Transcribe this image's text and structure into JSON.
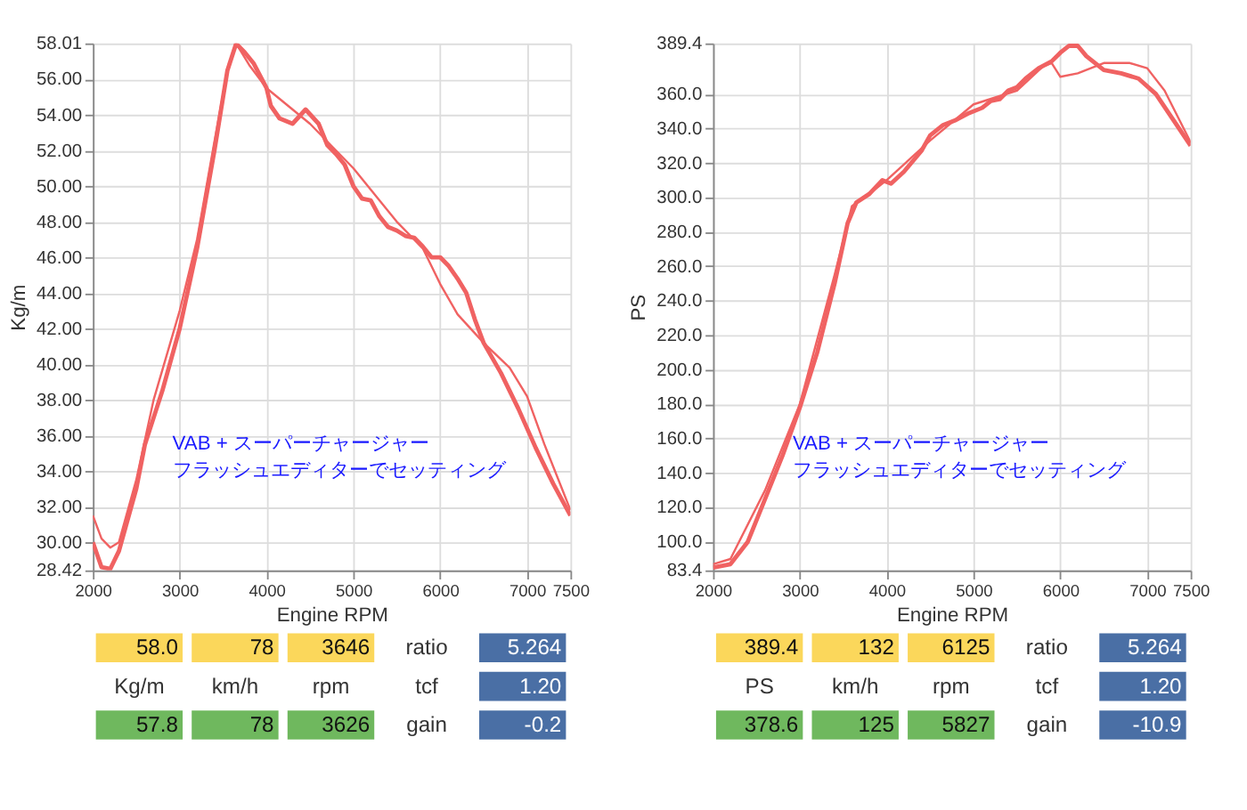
{
  "chart_data": [
    {
      "type": "line",
      "xlabel": "Engine RPM",
      "ylabel": "Kg/m",
      "grid": true,
      "xlim": [
        2000,
        7500
      ],
      "xticks": [
        2000,
        3000,
        4000,
        5000,
        6000,
        7000,
        7500
      ],
      "ylim": [
        28.42,
        58.01
      ],
      "yticks": [
        {
          "value": 28.42,
          "label": "28.42"
        },
        {
          "value": 30,
          "label": "30.00"
        },
        {
          "value": 32,
          "label": "32.00"
        },
        {
          "value": 34,
          "label": "34.00"
        },
        {
          "value": 36,
          "label": "36.00"
        },
        {
          "value": 38,
          "label": "38.00"
        },
        {
          "value": 40,
          "label": "40.00"
        },
        {
          "value": 42,
          "label": "42.00"
        },
        {
          "value": 44,
          "label": "44.00"
        },
        {
          "value": 46,
          "label": "46.00"
        },
        {
          "value": 48,
          "label": "48.00"
        },
        {
          "value": 50,
          "label": "50.00"
        },
        {
          "value": 52,
          "label": "52.00"
        },
        {
          "value": 54,
          "label": "54.00"
        },
        {
          "value": 56,
          "label": "56.00"
        },
        {
          "value": 58.01,
          "label": "58.01"
        }
      ],
      "series": [
        {
          "color": "#f06262",
          "x": [
            2000,
            2100,
            2200,
            2300,
            2500,
            2600,
            2700,
            2800,
            3000,
            3200,
            3400,
            3550,
            3650,
            3750,
            3850,
            4000,
            4050,
            4150,
            4300,
            4450,
            4600,
            4700,
            4800,
            4900,
            5000,
            5100,
            5200,
            5300,
            5400,
            5500,
            5600,
            5700,
            5800,
            5900,
            6000,
            6100,
            6200,
            6300,
            6400,
            6500,
            6700,
            6900,
            7100,
            7300,
            7500
          ],
          "values": [
            30.0,
            28.6,
            28.5,
            29.5,
            33.0,
            35.5,
            37.0,
            38.5,
            42.0,
            46.5,
            52.0,
            56.5,
            58.0,
            57.5,
            56.9,
            55.5,
            54.5,
            53.8,
            53.5,
            54.3,
            53.5,
            52.3,
            51.8,
            51.2,
            50.0,
            49.3,
            49.2,
            48.3,
            47.7,
            47.5,
            47.2,
            47.1,
            46.6,
            46.0,
            46.0,
            45.5,
            44.8,
            44.0,
            42.5,
            41.2,
            39.5,
            37.5,
            35.3,
            33.3,
            31.5
          ]
        },
        {
          "color": "#f06262",
          "x": [
            2000,
            2100,
            2200,
            2300,
            2500,
            2700,
            3000,
            3200,
            3400,
            3550,
            3650,
            3800,
            4000,
            4500,
            5000,
            5500,
            5800,
            6000,
            6200,
            6500,
            6800,
            7000,
            7200,
            7500
          ],
          "values": [
            31.5,
            30.2,
            29.7,
            30.0,
            33.5,
            38.0,
            43.0,
            47.0,
            52.5,
            56.5,
            58.0,
            56.8,
            55.5,
            53.5,
            51.0,
            48.0,
            46.5,
            44.5,
            42.8,
            41.2,
            39.8,
            38.2,
            35.5,
            31.8
          ]
        }
      ],
      "annotations": [
        "VAB + スーパーチャージャー",
        "フラッシュエディターでセッティング",
        "58.0",
        "78",
        "3646",
        "ratio",
        "5.264",
        "Kg/m",
        "km/h",
        "rpm",
        "tcf",
        "1.20",
        "57.8",
        "78",
        "3626",
        "gain",
        "-0.2"
      ]
    },
    {
      "type": "line",
      "xlabel": "Engine RPM",
      "ylabel": "PS",
      "grid": true,
      "xlim": [
        2000,
        7500
      ],
      "xticks": [
        2000,
        3000,
        4000,
        5000,
        6000,
        7000,
        7500
      ],
      "ylim": [
        83.4,
        389.4
      ],
      "yticks": [
        83.4,
        {
          "value": 100,
          "label": "100.0"
        },
        {
          "value": 120,
          "label": "120.0"
        },
        {
          "value": 140,
          "label": "140.0"
        },
        {
          "value": 160,
          "label": "160.0"
        },
        {
          "value": 180,
          "label": "180.0"
        },
        {
          "value": 200,
          "label": "200.0"
        },
        {
          "value": 220,
          "label": "220.0"
        },
        {
          "value": 240,
          "label": "240.0"
        },
        {
          "value": 260,
          "label": "260.0"
        },
        {
          "value": 280,
          "label": "280.0"
        },
        {
          "value": 300,
          "label": "300.0"
        },
        {
          "value": 320,
          "label": "320.0"
        },
        {
          "value": 340,
          "label": "340.0"
        },
        {
          "value": 360,
          "label": "360.0"
        },
        389.4
      ],
      "series": [
        {
          "color": "#f06262",
          "x": [
            2000,
            2200,
            2400,
            2600,
            2800,
            3000,
            3200,
            3400,
            3550,
            3650,
            3800,
            3950,
            4050,
            4200,
            4400,
            4500,
            4650,
            4800,
            4950,
            5100,
            5200,
            5300,
            5400,
            5500,
            5600,
            5750,
            5900,
            6000,
            6100,
            6200,
            6300,
            6500,
            6700,
            6900,
            7100,
            7300,
            7500
          ],
          "values": [
            85,
            87,
            100,
            125,
            150,
            178,
            210,
            250,
            285,
            297,
            302,
            310,
            308,
            315,
            327,
            336,
            342,
            345,
            349,
            352,
            356,
            357,
            362,
            364,
            369,
            375,
            379,
            384,
            388,
            388,
            382,
            374,
            372,
            369,
            360,
            345,
            330
          ]
        },
        {
          "color": "#f06262",
          "x": [
            2000,
            2200,
            2600,
            3000,
            3400,
            3600,
            3800,
            4000,
            4500,
            5000,
            5500,
            5800,
            5900,
            6000,
            6200,
            6500,
            6800,
            7000,
            7200,
            7500
          ],
          "values": [
            87,
            90,
            130,
            180,
            255,
            295,
            302,
            310,
            333,
            354,
            362,
            376,
            378,
            370,
            372,
            378,
            378,
            375,
            362,
            332
          ]
        }
      ],
      "annotations": [
        "VAB + スーパーチャージャー",
        "フラッシュエディターでセッティング",
        "389.4",
        "132",
        "6125",
        "ratio",
        "5.264",
        "PS",
        "km/h",
        "rpm",
        "tcf",
        "1.20",
        "378.6",
        "125",
        "5827",
        "gain",
        "-10.9"
      ]
    }
  ]
}
